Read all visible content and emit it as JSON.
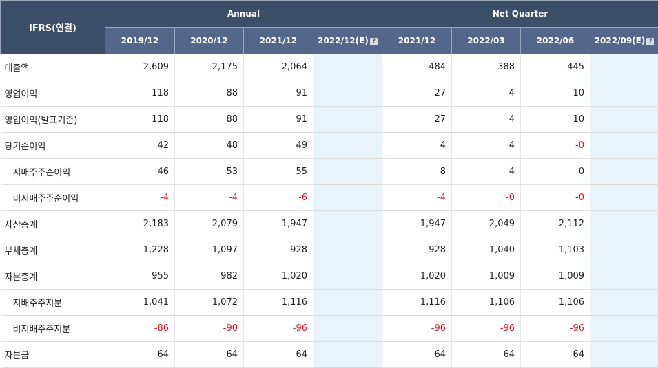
{
  "header": {
    "corner": "IFRS(연결)",
    "annual_label": "Annual",
    "quarter_label": "Net Quarter",
    "help_icon": "?",
    "periods": [
      "2019/12",
      "2020/12",
      "2021/12",
      "2022/12(E)",
      "2021/12",
      "2022/03",
      "2022/06",
      "2022/09(E)"
    ]
  },
  "rows": [
    {
      "label": "매출액",
      "values": [
        "2,609",
        "2,175",
        "2,064",
        "",
        "484",
        "388",
        "445",
        ""
      ]
    },
    {
      "label": "영업이익",
      "values": [
        "118",
        "88",
        "91",
        "",
        "27",
        "4",
        "10",
        ""
      ]
    },
    {
      "label": "영업이익(발표기준)",
      "values": [
        "118",
        "88",
        "91",
        "",
        "27",
        "4",
        "10",
        ""
      ]
    },
    {
      "label": "당기순이익",
      "values": [
        "42",
        "48",
        "49",
        "",
        "4",
        "4",
        "-0",
        ""
      ]
    },
    {
      "label": "지배주주순이익",
      "values": [
        "46",
        "53",
        "55",
        "",
        "8",
        "4",
        "0",
        ""
      ]
    },
    {
      "label": "비지배주주순이익",
      "values": [
        "-4",
        "-4",
        "-6",
        "",
        "-4",
        "-0",
        "-0",
        ""
      ]
    },
    {
      "label": "자산총계",
      "values": [
        "2,183",
        "2,079",
        "1,947",
        "",
        "1,947",
        "2,049",
        "2,112",
        ""
      ]
    },
    {
      "label": "부채총계",
      "values": [
        "1,228",
        "1,097",
        "928",
        "",
        "928",
        "1,040",
        "1,103",
        ""
      ]
    },
    {
      "label": "자본총계",
      "values": [
        "955",
        "982",
        "1,020",
        "",
        "1,020",
        "1,009",
        "1,009",
        ""
      ]
    },
    {
      "label": "지배주주지분",
      "values": [
        "1,041",
        "1,072",
        "1,116",
        "",
        "1,116",
        "1,106",
        "1,106",
        ""
      ]
    },
    {
      "label": "비지배주주지분",
      "values": [
        "-86",
        "-90",
        "-96",
        "",
        "-96",
        "-96",
        "-96",
        ""
      ]
    },
    {
      "label": "자본금",
      "values": [
        "64",
        "64",
        "64",
        "",
        "64",
        "64",
        "64",
        ""
      ]
    }
  ]
}
